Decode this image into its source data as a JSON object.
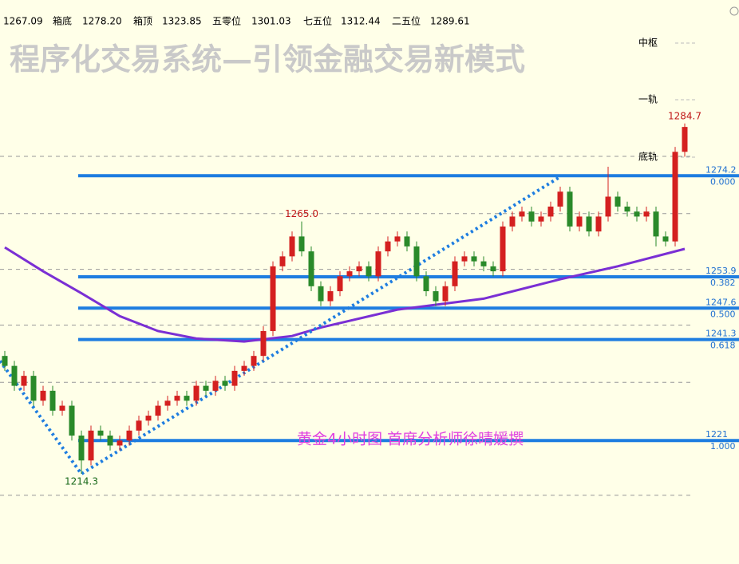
{
  "chart_data": {
    "type": "candlestick",
    "title": "程序化交易系统—引领金融交易新模式",
    "header": [
      "1267.09",
      "箱底",
      "1278.20",
      "箱顶",
      "1323.85",
      "五零位",
      "1301.03",
      "七五位",
      "1312.44",
      "二五位",
      "1289.61"
    ],
    "side_labels": [
      "中枢",
      "一轨",
      "底轨"
    ],
    "annotation": "黄金4小时图  首席分析师徐晴媛撰",
    "ylim": [
      1196.2,
      1309.5
    ],
    "up_color": "#d42020",
    "down_color": "#2a8a2a",
    "open": [
      1238,
      1236,
      1232,
      1234,
      1229,
      1231,
      1227,
      1228,
      1222,
      1217,
      1223,
      1222,
      1220,
      1221,
      1223,
      1225,
      1226,
      1228,
      1229,
      1230,
      1229,
      1232,
      1231,
      1233,
      1232,
      1235,
      1236,
      1238,
      1243,
      1256,
      1258,
      1262,
      1259,
      1252,
      1249,
      1251,
      1254,
      1255,
      1256,
      1254,
      1259,
      1261,
      1262,
      1260,
      1254,
      1251,
      1249,
      1252,
      1257,
      1258,
      1257,
      1256,
      1255,
      1264,
      1266,
      1267,
      1265,
      1266,
      1268,
      1271,
      1264,
      1266,
      1263,
      1266,
      1270,
      1268,
      1267,
      1266,
      1267,
      1262,
      1261,
      1279
    ],
    "high": [
      1239,
      1237,
      1235,
      1235,
      1232,
      1232,
      1229,
      1229,
      1223,
      1224,
      1224,
      1223,
      1222,
      1224,
      1226,
      1227,
      1229,
      1230,
      1231,
      1231,
      1233,
      1233,
      1234,
      1234,
      1236,
      1237,
      1239,
      1244,
      1257,
      1259,
      1263,
      1265.0,
      1260,
      1253,
      1252,
      1255,
      1256,
      1257,
      1257,
      1260,
      1262,
      1263,
      1263,
      1261,
      1255,
      1252,
      1253,
      1258,
      1259,
      1259,
      1258,
      1257,
      1265,
      1267,
      1268,
      1268,
      1267,
      1269,
      1272,
      1272,
      1267,
      1267,
      1267,
      1276,
      1271,
      1269,
      1268,
      1268,
      1268,
      1263,
      1280,
      1284.7
    ],
    "low": [
      1235,
      1231,
      1231,
      1228,
      1228,
      1226,
      1226,
      1221,
      1214.3,
      1216,
      1221,
      1219,
      1219,
      1220,
      1222,
      1224,
      1225,
      1227,
      1228,
      1228,
      1228,
      1230,
      1230,
      1231,
      1231,
      1234,
      1235,
      1237,
      1242,
      1255,
      1257,
      1258,
      1251,
      1248,
      1248,
      1250,
      1253,
      1254,
      1253,
      1253,
      1258,
      1260,
      1259,
      1253,
      1250,
      1248,
      1248,
      1251,
      1256,
      1256,
      1255,
      1254,
      1254,
      1263,
      1265,
      1264,
      1264,
      1265,
      1267,
      1263,
      1263,
      1262,
      1262,
      1265,
      1267,
      1266,
      1265,
      1265,
      1260,
      1260,
      1260,
      1278
    ],
    "close": [
      1236,
      1232,
      1234,
      1229,
      1231,
      1227,
      1228,
      1222,
      1217,
      1223,
      1222,
      1220,
      1221,
      1223,
      1225,
      1226,
      1228,
      1229,
      1230,
      1229,
      1232,
      1231,
      1233,
      1232,
      1235,
      1236,
      1238,
      1243,
      1256,
      1258,
      1262,
      1259,
      1252,
      1249,
      1251,
      1254,
      1255,
      1256,
      1254,
      1259,
      1261,
      1262,
      1260,
      1254,
      1251,
      1249,
      1252,
      1257,
      1258,
      1257,
      1256,
      1255,
      1264,
      1266,
      1267,
      1265,
      1266,
      1268,
      1271,
      1264,
      1266,
      1263,
      1266,
      1270,
      1268,
      1267,
      1266,
      1267,
      1262,
      1261,
      1279,
      1284
    ],
    "high_labels": [
      null,
      null,
      null,
      null,
      null,
      null,
      null,
      null,
      null,
      null,
      null,
      null,
      null,
      null,
      null,
      null,
      null,
      null,
      null,
      null,
      null,
      null,
      null,
      null,
      null,
      null,
      null,
      null,
      null,
      null,
      null,
      "1265.0",
      null,
      null,
      null,
      null,
      null,
      null,
      null,
      null,
      null,
      null,
      null,
      null,
      null,
      null,
      null,
      null,
      null,
      null,
      null,
      null,
      null,
      null,
      null,
      null,
      null,
      null,
      null,
      null,
      null,
      null,
      null,
      null,
      null,
      null,
      null,
      null,
      null,
      null,
      null,
      "1284.7"
    ],
    "low_labels": [
      null,
      null,
      null,
      null,
      null,
      null,
      null,
      null,
      "1214.3",
      null,
      null,
      null,
      null,
      null,
      null,
      null,
      null,
      null,
      null,
      null,
      null,
      null,
      null,
      null,
      null,
      null,
      null,
      null,
      null,
      null,
      null,
      null,
      null,
      null,
      null,
      null,
      null,
      null,
      null,
      null,
      null,
      null,
      null,
      null,
      null,
      null,
      null,
      null,
      null,
      null,
      null,
      null,
      null,
      null,
      null,
      null,
      null,
      null,
      null,
      null,
      null,
      null,
      null,
      null,
      null,
      null,
      null,
      null,
      null,
      null,
      null,
      null
    ],
    "ma": {
      "color": "#7a2fd4",
      "x": [
        0,
        4,
        8,
        12,
        16,
        20,
        25,
        30,
        33,
        41,
        50,
        58,
        64,
        71
      ],
      "values": [
        1259.8,
        1255,
        1250.6,
        1246,
        1243,
        1241.5,
        1240.9,
        1242,
        1243.7,
        1247.3,
        1249.5,
        1253.4,
        1256,
        1259.5
      ]
    },
    "trendline": {
      "color": "#1e7de0",
      "x": [
        -0.5,
        8,
        58
      ],
      "values": [
        1237,
        1214.3,
        1274
      ]
    },
    "ygrid": [
      1278.1,
      1266.6,
      1255.4,
      1244.2,
      1232.7,
      1210
    ],
    "levels": [
      {
        "price": 1274.2,
        "ratio": "0.000"
      },
      {
        "price": 1253.9,
        "ratio": "0.382"
      },
      {
        "price": 1247.6,
        "ratio": "0.500"
      },
      {
        "price": 1241.3,
        "ratio": "0.618"
      },
      {
        "price": 1221.0,
        "ratio": "1.000"
      }
    ],
    "level_color": "#1e7de0"
  }
}
